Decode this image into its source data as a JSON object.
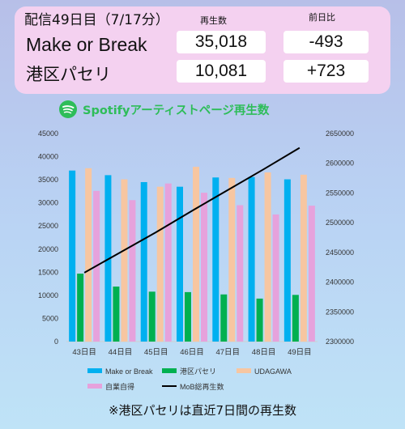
{
  "header": {
    "title": "配信49日目（7/17分）",
    "col_plays": "再生数",
    "col_diff": "前日比",
    "rows": [
      {
        "name": "Make or Break",
        "plays": "35,018",
        "diff": "-493"
      },
      {
        "name": "港区パセリ",
        "plays": "10,081",
        "diff": "+723"
      }
    ]
  },
  "chart_title": "Spotifyアーティストページ再生数",
  "spotify_icon": "spotify-logo-icon",
  "footnote": "※港区パセリは直近7日間の再生数",
  "colors": {
    "make_or_break": "#00b0f0",
    "minato_parsley": "#00b050",
    "udagawa": "#f7c6a1",
    "jigyou_mokuroku": "#e6a2dc",
    "mob_total": "#000000",
    "spotify": "#2ebd59",
    "panel": "#f4d1f0"
  },
  "chart_data": {
    "type": "bar",
    "categories": [
      "43日目",
      "44日目",
      "45日目",
      "46日目",
      "47日目",
      "48日目",
      "49日目"
    ],
    "series": [
      {
        "name": "Make or Break",
        "type": "bar",
        "axis": "left",
        "values": [
          37000,
          36000,
          34500,
          33500,
          35500,
          35600,
          35100
        ]
      },
      {
        "name": "港区パセリ",
        "type": "bar",
        "axis": "left",
        "values": [
          14700,
          11900,
          10800,
          10700,
          10200,
          9300,
          10100
        ]
      },
      {
        "name": "UDAGAWA",
        "type": "bar",
        "axis": "left",
        "values": [
          37500,
          35100,
          33500,
          37800,
          35400,
          36600,
          36100
        ]
      },
      {
        "name": "自業自得",
        "type": "bar",
        "axis": "left",
        "values": [
          32600,
          30600,
          34200,
          32200,
          29500,
          27500,
          29400
        ]
      },
      {
        "name": "MoB総再生数",
        "type": "line",
        "axis": "right",
        "values": [
          2416000,
          2450000,
          2484000,
          2520000,
          2555000,
          2590000,
          2626000
        ]
      }
    ],
    "left_axis": {
      "min": 0,
      "max": 45000,
      "step": 5000
    },
    "right_axis": {
      "min": 2300000,
      "max": 2650000,
      "step": 50000
    },
    "legend_position": "bottom",
    "grid": false
  }
}
